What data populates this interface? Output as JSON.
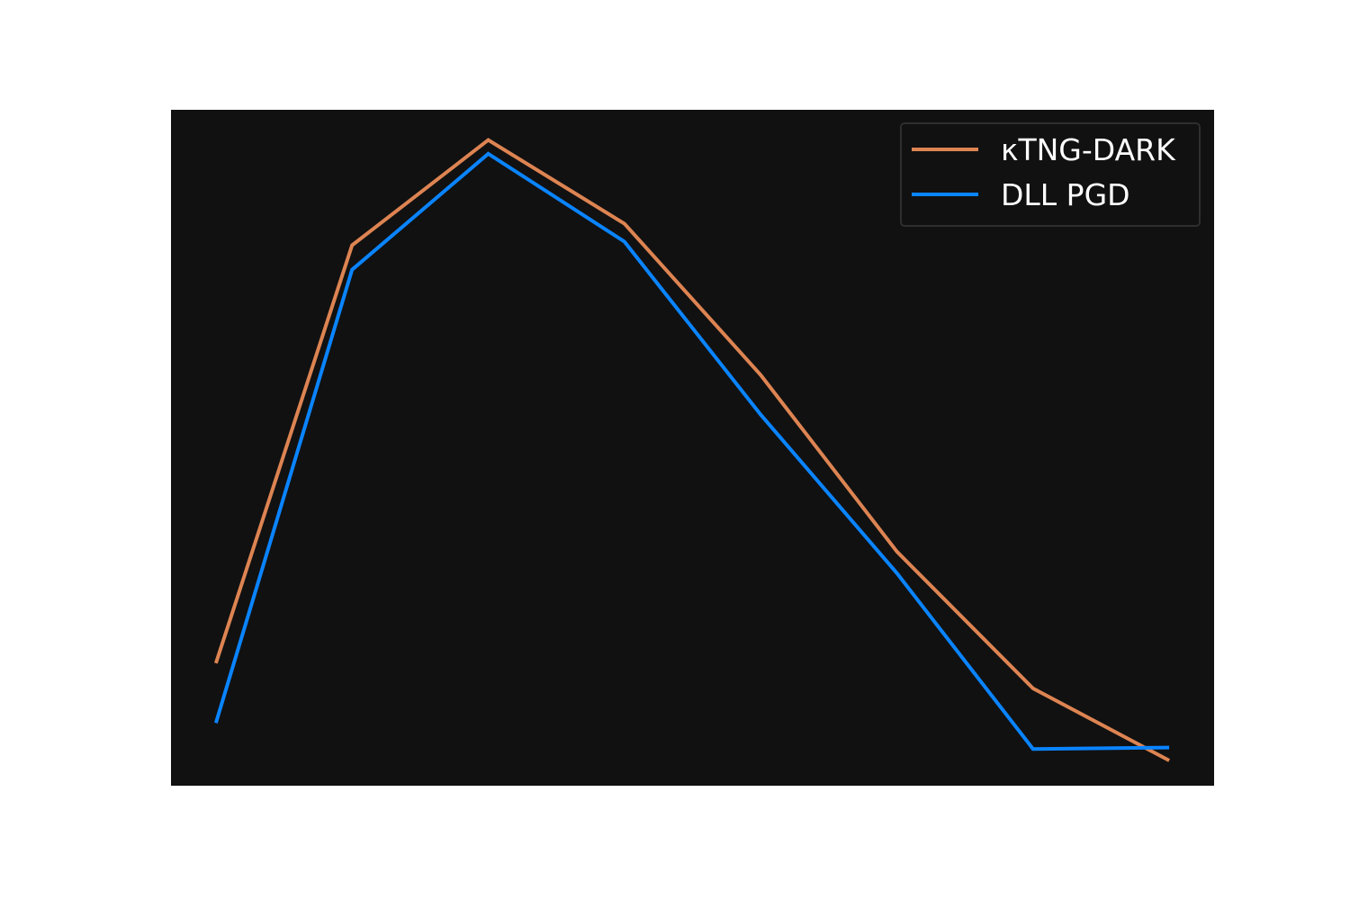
{
  "chart_data": {
    "type": "line",
    "x": [
      0,
      1,
      2,
      3,
      4,
      5,
      6,
      7
    ],
    "series": [
      {
        "name": "κTNG-DARK",
        "color": "#dd8452",
        "values": [
          0.22,
          0.8,
          0.946,
          0.83,
          0.62,
          0.375,
          0.185,
          0.085
        ]
      },
      {
        "name": "DLL PGD",
        "color": "#0a84ff",
        "values": [
          0.137,
          0.766,
          0.927,
          0.805,
          0.565,
          0.345,
          0.101,
          0.103
        ]
      }
    ],
    "xlim": [
      -0.33,
      7.33
    ],
    "ylim": [
      0.05,
      0.988
    ],
    "grid": false,
    "legend": "top-right",
    "axes_background": "#111111",
    "figure_background": "#ffffff"
  }
}
